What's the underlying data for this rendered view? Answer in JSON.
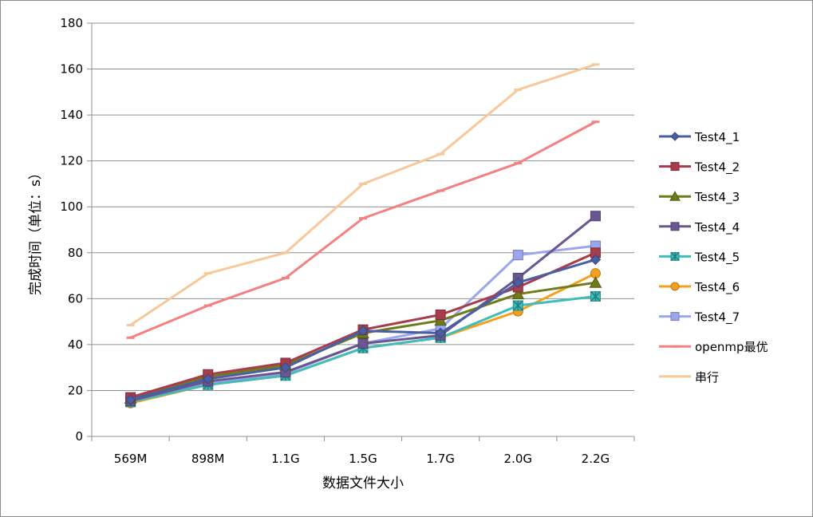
{
  "chart_data": {
    "type": "line",
    "title": "",
    "xlabel": "数据文件大小",
    "ylabel": "完成时间（单位：s）",
    "categories": [
      "569M",
      "898M",
      "1.1G",
      "1.5G",
      "1.7G",
      "2.0G",
      "2.2G"
    ],
    "ylim": [
      0,
      180
    ],
    "yticks": [
      0,
      20,
      40,
      60,
      80,
      100,
      120,
      140,
      160,
      180
    ],
    "grid": true,
    "legend_position": "right",
    "series": [
      {
        "name": "Test4_1",
        "color": "#4a5fa3",
        "marker": "diamond",
        "values": [
          16,
          25,
          30,
          46,
          45,
          67,
          77
        ]
      },
      {
        "name": "Test4_2",
        "color": "#a63c4c",
        "marker": "square",
        "values": [
          17,
          27,
          32,
          46.5,
          53,
          65,
          80
        ]
      },
      {
        "name": "Test4_3",
        "color": "#6f7a18",
        "marker": "triangle",
        "values": [
          16.5,
          26,
          31,
          45,
          50.5,
          62,
          67
        ]
      },
      {
        "name": "Test4_4",
        "color": "#6a5691",
        "marker": "square",
        "values": [
          15.5,
          24,
          28,
          40.5,
          44,
          69,
          96
        ]
      },
      {
        "name": "Test4_5",
        "color": "#3fbcbc",
        "marker": "star",
        "values": [
          15,
          22.5,
          26.5,
          38.5,
          43,
          57,
          61
        ]
      },
      {
        "name": "Test4_6",
        "color": "#f5a01a",
        "marker": "circle",
        "values": [
          14.5,
          22.5,
          26.5,
          38.5,
          43,
          54.5,
          71
        ]
      },
      {
        "name": "Test4_7",
        "color": "#9aa6ed",
        "marker": "square",
        "values": [
          15,
          23.5,
          27.5,
          40.5,
          47,
          79,
          83
        ]
      },
      {
        "name": "openmp最优",
        "color": "#f48181",
        "marker": "dash",
        "values": [
          43,
          57,
          69,
          95,
          107,
          119,
          137
        ]
      },
      {
        "name": "串行",
        "color": "#f9c89a",
        "marker": "dash",
        "values": [
          48.5,
          71,
          80,
          110,
          123,
          151,
          162
        ]
      }
    ]
  }
}
